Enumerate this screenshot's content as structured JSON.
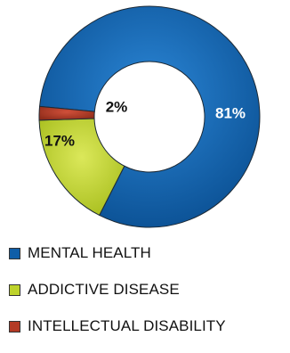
{
  "chart_data": {
    "type": "pie",
    "style": "donut",
    "series": [
      {
        "name": "MENTAL HEALTH",
        "value": 81,
        "label": "81%",
        "color": "#0F5EA8",
        "label_color": "#ffffff"
      },
      {
        "name": "ADDICTIVE DISEASE",
        "value": 17,
        "label": "17%",
        "color": "#BED32B",
        "label_color": "#111111"
      },
      {
        "name": "INTELLECTUAL DISABILITY",
        "value": 2,
        "label": "2%",
        "color": "#B33A25",
        "label_color": "#111111"
      }
    ],
    "legend_position": "bottom-left"
  }
}
